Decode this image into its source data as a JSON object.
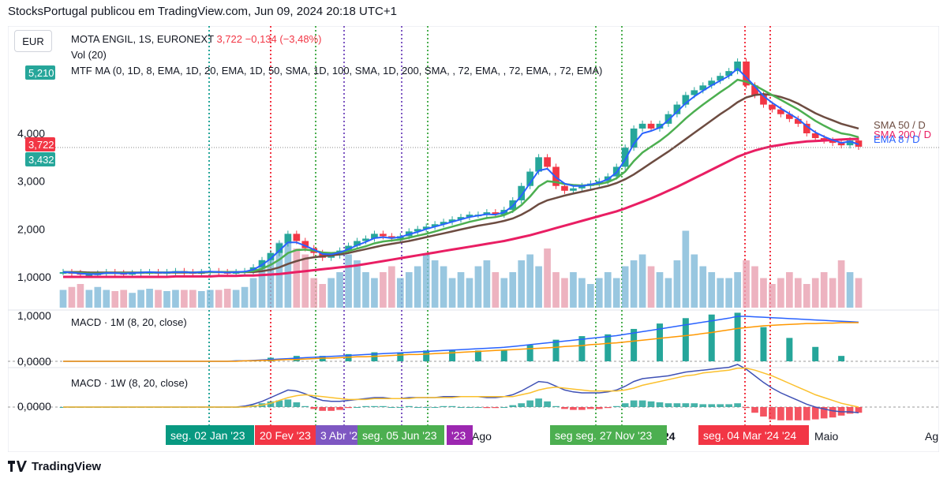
{
  "header": {
    "title": "StocksPortugal publicou em TradingView.com, Jun 09, 2024 20:18 UTC+1"
  },
  "footer": {
    "brand": "TradingView"
  },
  "currency_button": "EUR",
  "legend": {
    "symbol": "MOTA ENGIL, 1S, EURONEXT",
    "price": "3,722",
    "change": "−0,134 (−3,48%)",
    "vol": "Vol (20)",
    "mtf": "MTF MA (0, 1D, 8, EMA, 1D, 20, EMA, 1D, 50, SMA, 1D, 100, SMA, 1D, 200, SMA, , 72, EMA, , 72, EMA, , 72, EMA)",
    "macd1": "MACD · 1M (8, 20, close)",
    "macd2": "MACD · 1W (8, 20, close)"
  },
  "colors": {
    "up": "#26a69a",
    "down": "#f23645",
    "ema8": "#2962ff",
    "ema20": "#4caf50",
    "sma50": "#6d4c41",
    "sma200": "#e91e63",
    "orange": "#ff9800",
    "purple": "#7e57c2"
  },
  "chart_data": {
    "type": "line",
    "y_ticks": [
      "4,000",
      "3,000",
      "2,000",
      "1,0000"
    ],
    "price_labels": [
      {
        "text": "5,210",
        "color": "#26a69a"
      },
      {
        "text": "3,722",
        "color": "#f23645"
      },
      {
        "text": "3,432",
        "color": "#26a69a"
      }
    ],
    "macd_ticks": [
      "1,0000",
      "0,0000",
      "0,0000"
    ],
    "x_labels": [
      "Ago",
      "24",
      "Maio",
      "Ag"
    ],
    "date_markers": [
      {
        "text": "seg. 02 Jan '23",
        "color": "#089981"
      },
      {
        "text": "20 Fev '23",
        "color": "#f23645"
      },
      {
        "text": "3 Abr '23",
        "color": "#7e57c2"
      },
      {
        "text": "seg. 05 Jun '23",
        "color": "#4caf50"
      },
      {
        "text": "'23",
        "color": "#9c27b0"
      },
      {
        "text": "seg   seg. 27 Nov '23",
        "color": "#4caf50"
      },
      {
        "text": "seg. 04 Mar '24    '24",
        "color": "#f23645"
      }
    ],
    "ma_labels": [
      "SMA 50 / D",
      "SMA 200 / D",
      "EMA 8 / D"
    ],
    "price": [
      1.1,
      1.08,
      1.05,
      1.05,
      1.07,
      1.1,
      1.08,
      1.07,
      1.08,
      1.1,
      1.1,
      1.08,
      1.1,
      1.12,
      1.1,
      1.08,
      1.1,
      1.12,
      1.1,
      1.08,
      1.1,
      1.12,
      1.2,
      1.35,
      1.5,
      1.7,
      1.9,
      1.75,
      1.6,
      1.5,
      1.4,
      1.45,
      1.55,
      1.65,
      1.75,
      1.8,
      1.9,
      1.85,
      1.8,
      1.85,
      1.95,
      2.0,
      2.05,
      2.1,
      2.15,
      2.2,
      2.25,
      2.3,
      2.3,
      2.35,
      2.3,
      2.4,
      2.6,
      2.9,
      3.2,
      3.5,
      3.3,
      2.9,
      2.8,
      2.85,
      2.9,
      2.95,
      3.0,
      3.1,
      3.3,
      3.7,
      4.1,
      4.2,
      4.1,
      4.2,
      4.4,
      4.6,
      4.8,
      4.9,
      5.0,
      5.1,
      5.2,
      5.3,
      5.5,
      5.0,
      4.8,
      4.6,
      4.5,
      4.4,
      4.3,
      4.2,
      4.0,
      3.9,
      3.85,
      3.8,
      3.75,
      3.85,
      3.72
    ],
    "ema8": [
      1.1,
      1.09,
      1.07,
      1.06,
      1.06,
      1.08,
      1.08,
      1.07,
      1.08,
      1.09,
      1.1,
      1.09,
      1.09,
      1.1,
      1.1,
      1.09,
      1.1,
      1.11,
      1.1,
      1.09,
      1.1,
      1.11,
      1.15,
      1.25,
      1.38,
      1.55,
      1.72,
      1.72,
      1.65,
      1.57,
      1.48,
      1.47,
      1.51,
      1.58,
      1.66,
      1.73,
      1.81,
      1.83,
      1.81,
      1.83,
      1.89,
      1.94,
      2.0,
      2.05,
      2.1,
      2.15,
      2.2,
      2.25,
      2.28,
      2.31,
      2.3,
      2.35,
      2.48,
      2.7,
      2.96,
      3.22,
      3.26,
      3.08,
      2.95,
      2.9,
      2.9,
      2.93,
      2.97,
      3.04,
      3.18,
      3.45,
      3.78,
      4.0,
      4.05,
      4.12,
      4.28,
      4.45,
      4.63,
      4.77,
      4.89,
      5.0,
      5.1,
      5.2,
      5.35,
      5.17,
      4.98,
      4.78,
      4.64,
      4.52,
      4.41,
      4.3,
      4.15,
      4.02,
      3.93,
      3.86,
      3.8,
      3.83,
      3.77
    ],
    "ema20": [
      1.1,
      1.09,
      1.08,
      1.07,
      1.07,
      1.08,
      1.08,
      1.08,
      1.08,
      1.09,
      1.09,
      1.09,
      1.09,
      1.1,
      1.1,
      1.09,
      1.1,
      1.1,
      1.1,
      1.1,
      1.1,
      1.1,
      1.12,
      1.17,
      1.25,
      1.36,
      1.5,
      1.56,
      1.57,
      1.55,
      1.51,
      1.5,
      1.51,
      1.54,
      1.59,
      1.64,
      1.7,
      1.74,
      1.76,
      1.78,
      1.82,
      1.86,
      1.9,
      1.95,
      2.0,
      2.05,
      2.1,
      2.15,
      2.19,
      2.23,
      2.25,
      2.29,
      2.37,
      2.5,
      2.68,
      2.89,
      3.0,
      2.98,
      2.94,
      2.92,
      2.91,
      2.92,
      2.94,
      2.98,
      3.06,
      3.2,
      3.42,
      3.6,
      3.72,
      3.84,
      3.98,
      4.14,
      4.31,
      4.46,
      4.6,
      4.73,
      4.86,
      4.98,
      5.12,
      5.08,
      5.0,
      4.9,
      4.8,
      4.7,
      4.6,
      4.5,
      4.38,
      4.26,
      4.16,
      4.07,
      4.0,
      3.97,
      3.92
    ],
    "sma50": [
      1.1,
      1.1,
      1.1,
      1.09,
      1.09,
      1.09,
      1.09,
      1.09,
      1.09,
      1.09,
      1.09,
      1.09,
      1.09,
      1.09,
      1.09,
      1.09,
      1.09,
      1.1,
      1.1,
      1.1,
      1.1,
      1.1,
      1.1,
      1.12,
      1.15,
      1.2,
      1.27,
      1.33,
      1.38,
      1.41,
      1.43,
      1.45,
      1.47,
      1.5,
      1.54,
      1.58,
      1.62,
      1.66,
      1.69,
      1.72,
      1.75,
      1.79,
      1.83,
      1.87,
      1.91,
      1.95,
      1.99,
      2.03,
      2.07,
      2.1,
      2.13,
      2.17,
      2.22,
      2.3,
      2.4,
      2.52,
      2.6,
      2.65,
      2.7,
      2.74,
      2.78,
      2.82,
      2.86,
      2.9,
      2.96,
      3.04,
      3.14,
      3.26,
      3.38,
      3.5,
      3.62,
      3.75,
      3.88,
      4.01,
      4.14,
      4.27,
      4.4,
      4.52,
      4.65,
      4.75,
      4.8,
      4.82,
      4.8,
      4.76,
      4.7,
      4.62,
      4.52,
      4.42,
      4.34,
      4.27,
      4.2,
      4.15,
      4.1
    ],
    "sma200": [
      1.0,
      1.0,
      1.0,
      1.0,
      1.0,
      1.0,
      1.0,
      1.0,
      1.0,
      1.0,
      1.0,
      1.0,
      1.0,
      1.01,
      1.01,
      1.01,
      1.01,
      1.01,
      1.02,
      1.02,
      1.02,
      1.03,
      1.03,
      1.04,
      1.05,
      1.06,
      1.08,
      1.1,
      1.12,
      1.14,
      1.16,
      1.18,
      1.2,
      1.22,
      1.24,
      1.27,
      1.3,
      1.33,
      1.36,
      1.39,
      1.42,
      1.45,
      1.48,
      1.51,
      1.54,
      1.57,
      1.6,
      1.63,
      1.66,
      1.69,
      1.72,
      1.75,
      1.79,
      1.83,
      1.87,
      1.92,
      1.97,
      2.02,
      2.07,
      2.12,
      2.17,
      2.22,
      2.27,
      2.32,
      2.37,
      2.43,
      2.5,
      2.57,
      2.64,
      2.72,
      2.8,
      2.88,
      2.97,
      3.06,
      3.15,
      3.24,
      3.33,
      3.42,
      3.51,
      3.58,
      3.64,
      3.69,
      3.73,
      3.76,
      3.79,
      3.81,
      3.83,
      3.84,
      3.85,
      3.86,
      3.87,
      3.88,
      3.88
    ],
    "volume": [
      0.3,
      0.35,
      0.4,
      0.3,
      0.35,
      0.3,
      0.28,
      0.3,
      0.25,
      0.3,
      0.32,
      0.3,
      0.28,
      0.3,
      0.3,
      0.3,
      0.28,
      0.3,
      0.3,
      0.32,
      0.3,
      0.35,
      0.5,
      0.7,
      0.9,
      1.1,
      1.2,
      1.0,
      0.9,
      0.5,
      0.4,
      0.5,
      0.6,
      0.9,
      0.8,
      0.6,
      0.5,
      0.6,
      0.7,
      0.5,
      0.6,
      0.7,
      0.9,
      0.8,
      0.7,
      0.5,
      0.6,
      0.5,
      0.7,
      0.8,
      0.6,
      0.5,
      0.6,
      0.8,
      0.9,
      0.7,
      1.0,
      0.6,
      0.5,
      0.6,
      0.5,
      0.4,
      0.5,
      0.6,
      0.5,
      0.7,
      0.8,
      0.9,
      0.7,
      0.6,
      0.5,
      0.8,
      1.3,
      0.9,
      0.7,
      0.6,
      0.5,
      0.5,
      0.6,
      0.8,
      0.7,
      0.5,
      0.4,
      0.5,
      0.6,
      0.5,
      0.4,
      0.5,
      0.6,
      0.5,
      0.8,
      0.6,
      0.5
    ],
    "macd1m_line": [
      0,
      0,
      0,
      0,
      0,
      0,
      0,
      0,
      0,
      0,
      0,
      0,
      0,
      0,
      0,
      0,
      0,
      0,
      0,
      0,
      0.01,
      0.01,
      0.02,
      0.03,
      0.04,
      0.05,
      0.06,
      0.07,
      0.08,
      0.09,
      0.1,
      0.11,
      0.12,
      0.13,
      0.14,
      0.15,
      0.16,
      0.17,
      0.18,
      0.19,
      0.2,
      0.21,
      0.22,
      0.23,
      0.24,
      0.25,
      0.26,
      0.27,
      0.28,
      0.29,
      0.3,
      0.31,
      0.33,
      0.35,
      0.37,
      0.39,
      0.41,
      0.43,
      0.45,
      0.47,
      0.49,
      0.51,
      0.53,
      0.55,
      0.57,
      0.6,
      0.63,
      0.66,
      0.69,
      0.72,
      0.75,
      0.78,
      0.81,
      0.84,
      0.87,
      0.9,
      0.93,
      0.96,
      1.0,
      1.0,
      0.99,
      0.98,
      0.97,
      0.96,
      0.95,
      0.94,
      0.93,
      0.92,
      0.91,
      0.9,
      0.89,
      0.88,
      0.87
    ],
    "macd1m_signal": [
      0,
      0,
      0,
      0,
      0,
      0,
      0,
      0,
      0,
      0,
      0,
      0,
      0,
      0,
      0,
      0,
      0,
      0,
      0,
      0,
      0,
      0.01,
      0.01,
      0.02,
      0.02,
      0.03,
      0.04,
      0.04,
      0.05,
      0.06,
      0.07,
      0.07,
      0.08,
      0.09,
      0.1,
      0.1,
      0.11,
      0.12,
      0.13,
      0.14,
      0.15,
      0.15,
      0.16,
      0.17,
      0.18,
      0.19,
      0.2,
      0.21,
      0.22,
      0.23,
      0.24,
      0.25,
      0.26,
      0.27,
      0.28,
      0.29,
      0.3,
      0.31,
      0.33,
      0.34,
      0.35,
      0.37,
      0.38,
      0.4,
      0.41,
      0.43,
      0.45,
      0.47,
      0.49,
      0.51,
      0.53,
      0.55,
      0.57,
      0.59,
      0.62,
      0.64,
      0.67,
      0.7,
      0.73,
      0.75,
      0.77,
      0.79,
      0.8,
      0.81,
      0.82,
      0.83,
      0.84,
      0.84,
      0.85,
      0.85,
      0.86,
      0.86,
      0.86
    ],
    "macd1w_line": [
      0,
      0,
      0,
      0,
      0,
      0,
      0,
      0,
      0,
      0,
      0,
      0,
      0,
      0,
      0,
      0,
      0,
      0,
      0,
      0,
      0,
      0.01,
      0.03,
      0.06,
      0.1,
      0.14,
      0.18,
      0.17,
      0.14,
      0.1,
      0.07,
      0.06,
      0.06,
      0.07,
      0.08,
      0.09,
      0.1,
      0.1,
      0.09,
      0.09,
      0.1,
      0.1,
      0.1,
      0.1,
      0.11,
      0.11,
      0.11,
      0.11,
      0.11,
      0.1,
      0.1,
      0.11,
      0.13,
      0.17,
      0.22,
      0.27,
      0.26,
      0.22,
      0.18,
      0.16,
      0.15,
      0.15,
      0.15,
      0.16,
      0.18,
      0.22,
      0.27,
      0.3,
      0.31,
      0.32,
      0.33,
      0.35,
      0.37,
      0.38,
      0.39,
      0.4,
      0.41,
      0.42,
      0.45,
      0.4,
      0.33,
      0.26,
      0.2,
      0.15,
      0.11,
      0.07,
      0.03,
      0,
      -0.02,
      -0.04,
      -0.05,
      -0.05,
      -0.06
    ],
    "macd1w_signal": [
      0,
      0,
      0,
      0,
      0,
      0,
      0,
      0,
      0,
      0,
      0,
      0,
      0,
      0,
      0,
      0,
      0,
      0,
      0,
      0,
      0,
      0,
      0.01,
      0.02,
      0.04,
      0.07,
      0.1,
      0.12,
      0.13,
      0.12,
      0.11,
      0.1,
      0.09,
      0.08,
      0.08,
      0.08,
      0.09,
      0.09,
      0.09,
      0.09,
      0.09,
      0.1,
      0.1,
      0.1,
      0.1,
      0.1,
      0.11,
      0.11,
      0.11,
      0.11,
      0.11,
      0.11,
      0.11,
      0.13,
      0.15,
      0.18,
      0.2,
      0.21,
      0.2,
      0.19,
      0.18,
      0.17,
      0.17,
      0.17,
      0.17,
      0.18,
      0.2,
      0.23,
      0.25,
      0.27,
      0.29,
      0.31,
      0.33,
      0.34,
      0.36,
      0.37,
      0.38,
      0.39,
      0.41,
      0.41,
      0.39,
      0.36,
      0.33,
      0.29,
      0.25,
      0.21,
      0.17,
      0.13,
      0.1,
      0.07,
      0.04,
      0.02,
      0
    ]
  }
}
